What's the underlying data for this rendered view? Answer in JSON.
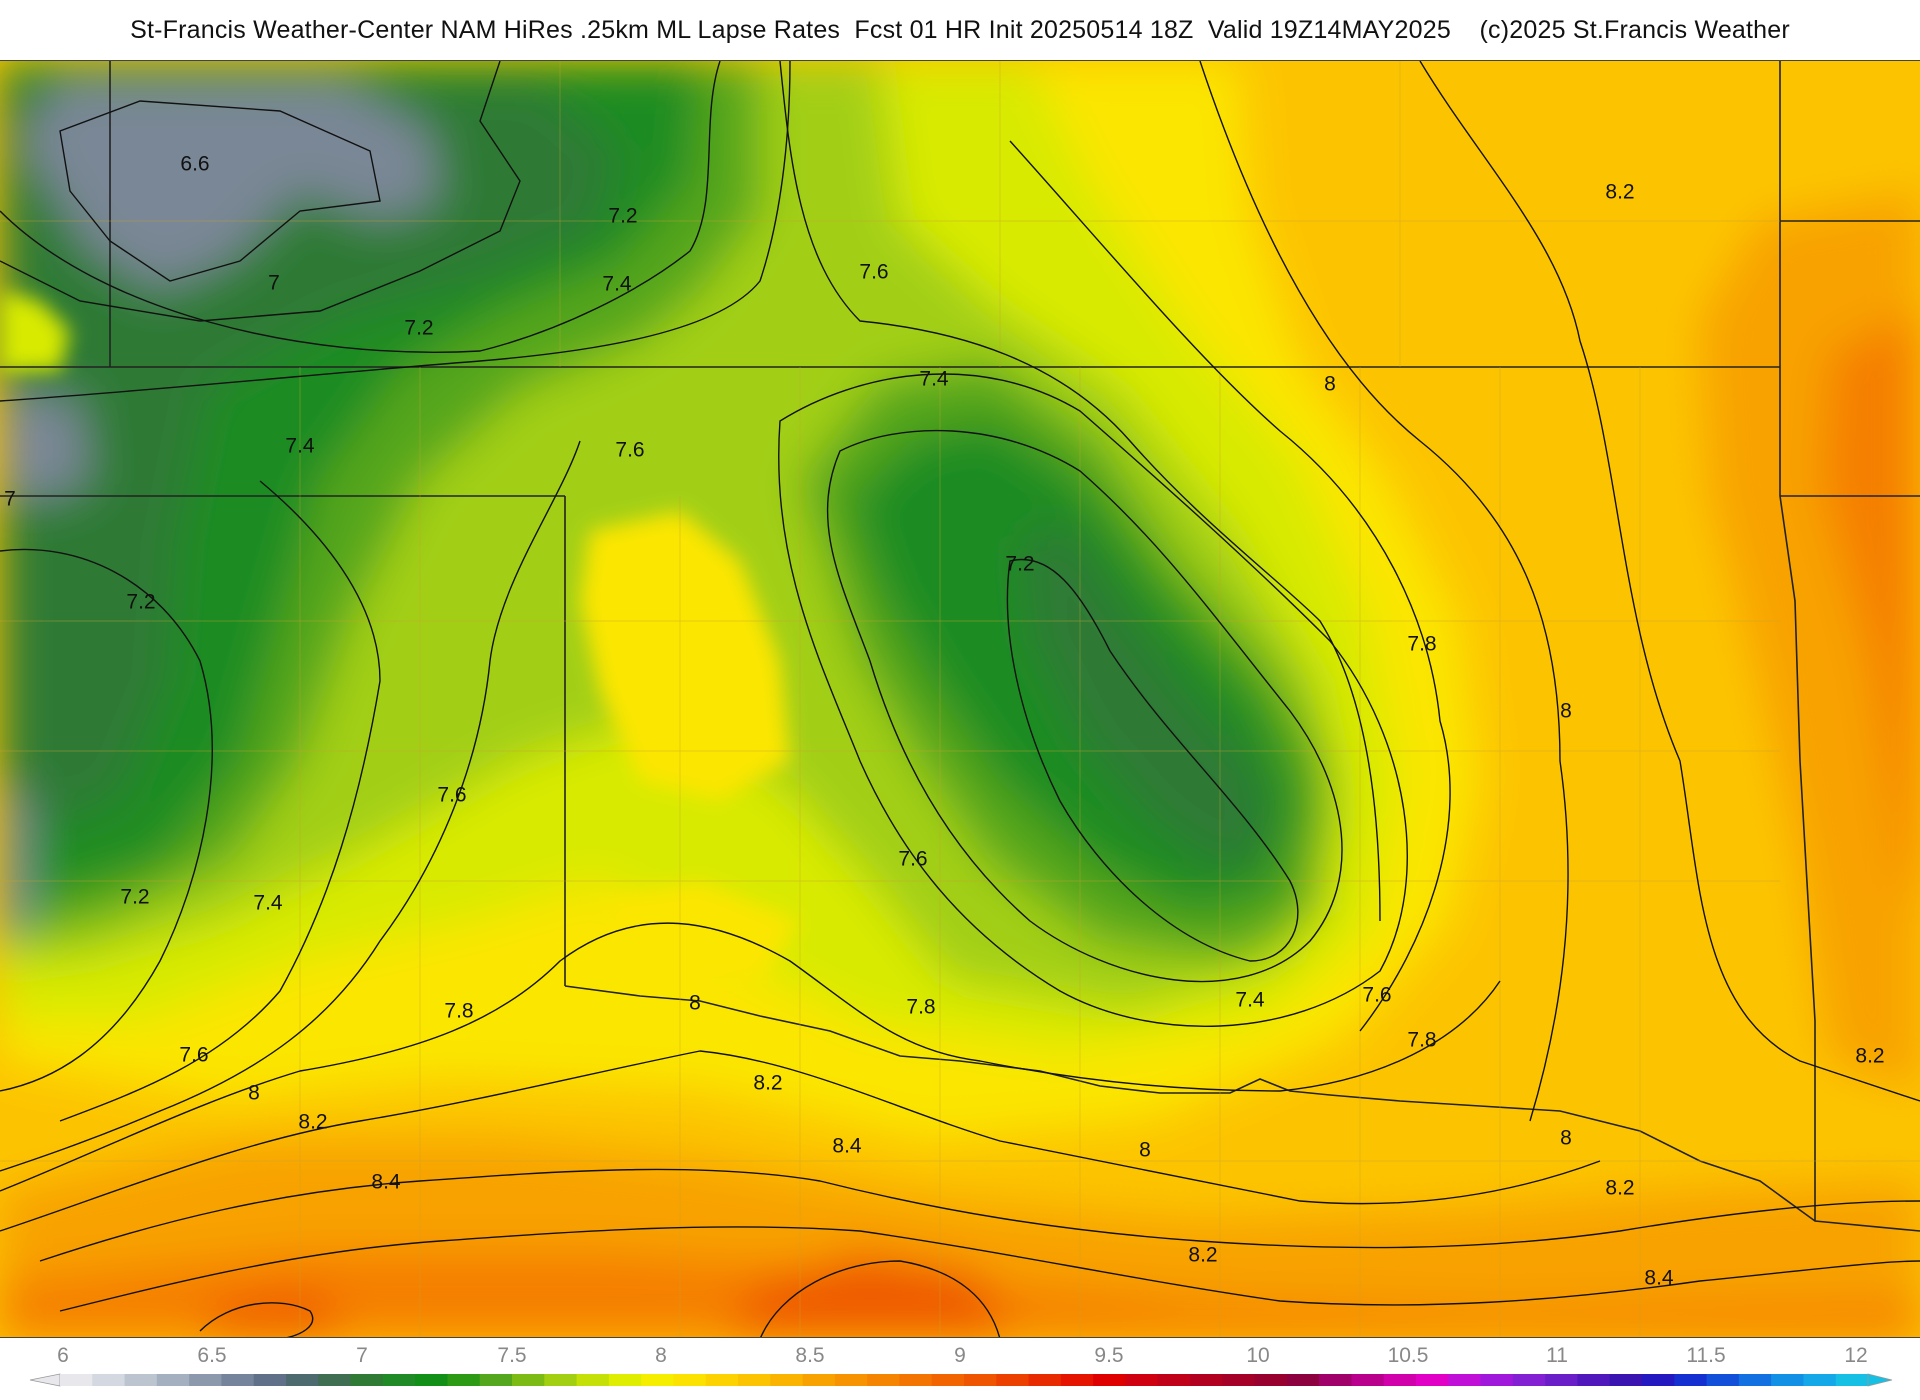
{
  "title": "St-Francis Weather-Center NAM HiRes .25km ML Lapse Rates  Fcst 01 HR Init 20250514 18Z  Valid 19Z14MAY2025    (c)2025 St.Francis Weather",
  "colors": {
    "v6_5": "#7a8796",
    "v7": "#2f7a34",
    "v7_2": "#1c8c22",
    "v7_4": "#54a61c",
    "v7_6": "#a2cf12",
    "v7_8": "#d8ea00",
    "v8": "#fbe600",
    "v8_2": "#fcc400",
    "v8_4": "#f8a200",
    "v8_6": "#f57f00",
    "v8_8": "#ef5a00",
    "boundary": "#222222",
    "county": "#c8a030",
    "contour": "#111111"
  },
  "map": {
    "contour_labels": [
      {
        "text": "6.6"
      },
      {
        "text": "7.2"
      },
      {
        "text": "7"
      },
      {
        "text": "7.4"
      },
      {
        "text": "7.2"
      },
      {
        "text": "7.6"
      },
      {
        "text": "8.2"
      },
      {
        "text": "7.4"
      },
      {
        "text": "8"
      },
      {
        "text": "7.6"
      },
      {
        "text": "7.4"
      },
      {
        "text": "7"
      },
      {
        "text": "7.2"
      },
      {
        "text": "7.2"
      },
      {
        "text": "7.8"
      },
      {
        "text": "8"
      },
      {
        "text": "7.6"
      },
      {
        "text": "7.6"
      },
      {
        "text": "7.2"
      },
      {
        "text": "7.4"
      },
      {
        "text": "7.8"
      },
      {
        "text": "8"
      },
      {
        "text": "7.8"
      },
      {
        "text": "7.4"
      },
      {
        "text": "7.6"
      },
      {
        "text": "7.8"
      },
      {
        "text": "7.6"
      },
      {
        "text": "8"
      },
      {
        "text": "8.2"
      },
      {
        "text": "8.2"
      },
      {
        "text": "8.4"
      },
      {
        "text": "8"
      },
      {
        "text": "8"
      },
      {
        "text": "8.2"
      },
      {
        "text": "8.4"
      },
      {
        "text": "8.2"
      },
      {
        "text": "8.4"
      },
      {
        "text": "8.2"
      }
    ]
  },
  "colorbar": {
    "ticks": [
      "6",
      "6.5",
      "7",
      "7.5",
      "8",
      "8.5",
      "9",
      "9.5",
      "10",
      "10.5",
      "11",
      "11.5",
      "12"
    ],
    "segments": [
      "#e8e8ec",
      "#d4d8e0",
      "#bcc4d0",
      "#a4afbf",
      "#8c99ad",
      "#75849a",
      "#5f7088",
      "#4d6a6e",
      "#3f6e52",
      "#2f7a34",
      "#1f8a26",
      "#128f16",
      "#2c9a14",
      "#54a61c",
      "#7cbb16",
      "#a2cf12",
      "#c4e006",
      "#dfee00",
      "#f6ee00",
      "#fbe200",
      "#fcd200",
      "#fcc400",
      "#fab400",
      "#f8a200",
      "#f79300",
      "#f58400",
      "#f37400",
      "#f16400",
      "#ef5400",
      "#ec4000",
      "#e82a00",
      "#e41400",
      "#de0000",
      "#cf0010",
      "#c00018",
      "#b20020",
      "#a40028",
      "#980030",
      "#8c0040",
      "#a0006a",
      "#b8008c",
      "#d000aa",
      "#e000c6",
      "#c010d8",
      "#a018dc",
      "#8420d4",
      "#6a1ec8",
      "#5018bc",
      "#3a14b0",
      "#2418c0",
      "#1430d0",
      "#1250da",
      "#1270e0",
      "#1290e6",
      "#14a8e8",
      "#16bfe4"
    ]
  }
}
